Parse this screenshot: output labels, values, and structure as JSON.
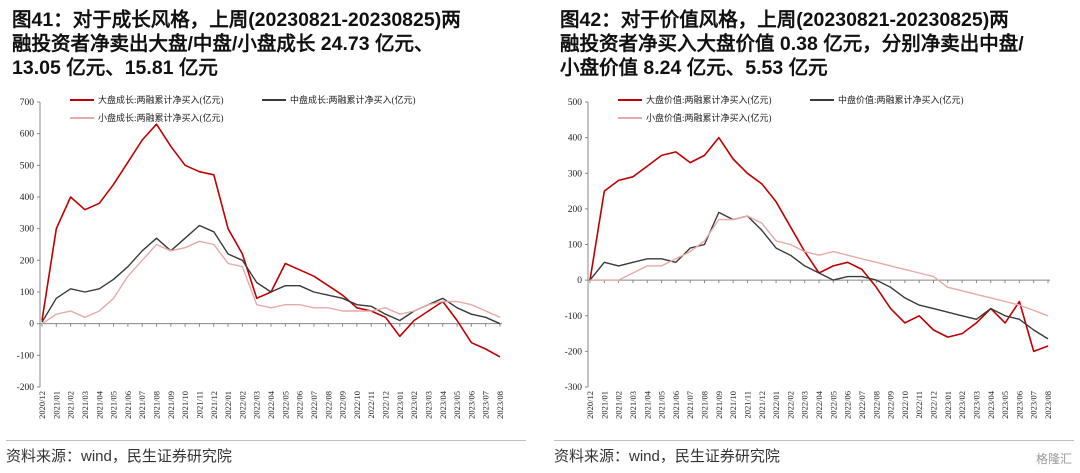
{
  "panels": [
    {
      "title_lines": [
        "图41：对于成长风格，上周(20230821-20230825)两",
        "融投资者净卖出大盘/中盘/小盘成长  24.73  亿元、",
        "13.05 亿元、15.81 亿元"
      ],
      "source": "资料来源：wind，民生证券研究院"
    },
    {
      "title_lines": [
        "图42：对于价值风格，上周(20230821-20230825)两",
        "融投资者净买入大盘价值 0.38 亿元，分别净卖出中盘/",
        "小盘价值 8.24 亿元、5.53 亿元"
      ],
      "source": "资料来源：wind，民生证券研究院"
    }
  ],
  "watermark": "格隆汇",
  "chart_data": [
    {
      "type": "line",
      "title": "",
      "ylim": [
        -200,
        700
      ],
      "yticks": [
        -200,
        -100,
        0,
        100,
        200,
        300,
        400,
        500,
        600,
        700
      ],
      "ytick_labels": [
        "-200",
        "-100",
        "0",
        "100",
        "200",
        "300",
        "400",
        "500",
        "600",
        "700"
      ],
      "grid": false,
      "legend": "top",
      "xticks": [
        "2020/12",
        "2021/01",
        "2021/02",
        "2021/03",
        "2021/04",
        "2021/05",
        "2021/06",
        "2021/07",
        "2021/08",
        "2021/09",
        "2021/10",
        "2021/11",
        "2021/12",
        "2022/01",
        "2022/02",
        "2022/03",
        "2022/04",
        "2022/05",
        "2022/06",
        "2022/07",
        "2022/08",
        "2022/09",
        "2022/10",
        "2022/11",
        "2022/12",
        "2023/01",
        "2023/02",
        "2023/03",
        "2023/04",
        "2023/05",
        "2023/06",
        "2023/07",
        "2023/08"
      ],
      "x": [
        "2020/12",
        "2021/01",
        "2021/02",
        "2021/03",
        "2021/04",
        "2021/05",
        "2021/06",
        "2021/07",
        "2021/08",
        "2021/09",
        "2021/10",
        "2021/11",
        "2021/12",
        "2022/01",
        "2022/02",
        "2022/03",
        "2022/04",
        "2022/05",
        "2022/06",
        "2022/07",
        "2022/08",
        "2022/09",
        "2022/10",
        "2022/11",
        "2022/12",
        "2023/01",
        "2023/02",
        "2023/03",
        "2023/04",
        "2023/05",
        "2023/06",
        "2023/07",
        "2023/08"
      ],
      "series": [
        {
          "name": "大盘成长:两融累计净买入(亿元)",
          "color": "#c00000",
          "width": 1.6,
          "values": [
            10,
            300,
            400,
            360,
            380,
            440,
            510,
            580,
            630,
            560,
            500,
            480,
            470,
            300,
            220,
            80,
            100,
            190,
            170,
            150,
            120,
            90,
            50,
            40,
            20,
            -40,
            10,
            40,
            70,
            10,
            -60,
            -80,
            -105
          ]
        },
        {
          "name": "中盘成长:两融累计净买入(亿元)",
          "color": "#3a3a3a",
          "width": 1.4,
          "values": [
            5,
            80,
            110,
            100,
            110,
            140,
            180,
            230,
            270,
            230,
            270,
            310,
            290,
            220,
            200,
            130,
            100,
            120,
            120,
            100,
            90,
            80,
            60,
            55,
            30,
            10,
            40,
            60,
            80,
            50,
            30,
            20,
            0
          ]
        },
        {
          "name": "小盘成长:两融累计净买入(亿元)",
          "color": "#e8a9a9",
          "width": 1.4,
          "values": [
            0,
            30,
            40,
            20,
            40,
            80,
            150,
            200,
            250,
            230,
            240,
            260,
            250,
            190,
            180,
            60,
            50,
            60,
            60,
            50,
            50,
            40,
            40,
            40,
            50,
            30,
            40,
            60,
            70,
            70,
            60,
            40,
            20
          ]
        }
      ]
    },
    {
      "type": "line",
      "title": "",
      "ylim": [
        -300,
        500
      ],
      "yticks": [
        -300,
        -200,
        -100,
        0,
        100,
        200,
        300,
        400,
        500
      ],
      "ytick_labels": [
        "-300",
        "-200",
        "-100",
        "0",
        "100",
        "200",
        "300",
        "400",
        "500"
      ],
      "grid": false,
      "legend": "top",
      "xticks": [
        "2020/12",
        "2021/01",
        "2021/02",
        "2021/03",
        "2021/04",
        "2021/05",
        "2021/06",
        "2021/07",
        "2021/08",
        "2021/09",
        "2021/10",
        "2021/11",
        "2021/12",
        "2022/01",
        "2022/02",
        "2022/03",
        "2022/04",
        "2022/05",
        "2022/06",
        "2022/07",
        "2022/08",
        "2022/09",
        "2022/10",
        "2022/11",
        "2022/12",
        "2023/01",
        "2023/02",
        "2023/03",
        "2023/04",
        "2023/05",
        "2023/06",
        "2023/07",
        "2023/08"
      ],
      "x": [
        "2020/12",
        "2021/01",
        "2021/02",
        "2021/03",
        "2021/04",
        "2021/05",
        "2021/06",
        "2021/07",
        "2021/08",
        "2021/09",
        "2021/10",
        "2021/11",
        "2021/12",
        "2022/01",
        "2022/02",
        "2022/03",
        "2022/04",
        "2022/05",
        "2022/06",
        "2022/07",
        "2022/08",
        "2022/09",
        "2022/10",
        "2022/11",
        "2022/12",
        "2023/01",
        "2023/02",
        "2023/03",
        "2023/04",
        "2023/05",
        "2023/06",
        "2023/07",
        "2023/08"
      ],
      "series": [
        {
          "name": "大盘价值:两融累计净买入(亿元)",
          "color": "#c00000",
          "width": 1.6,
          "values": [
            0,
            250,
            280,
            290,
            320,
            350,
            360,
            330,
            350,
            400,
            340,
            300,
            270,
            220,
            150,
            80,
            20,
            40,
            50,
            30,
            -20,
            -80,
            -120,
            -100,
            -140,
            -160,
            -150,
            -120,
            -80,
            -120,
            -60,
            -200,
            -185
          ]
        },
        {
          "name": "中盘价值:两融累计净买入(亿元)",
          "color": "#3a3a3a",
          "width": 1.4,
          "values": [
            0,
            50,
            40,
            50,
            60,
            60,
            50,
            90,
            100,
            190,
            170,
            180,
            140,
            90,
            70,
            40,
            20,
            0,
            10,
            10,
            0,
            -20,
            -50,
            -70,
            -80,
            -90,
            -100,
            -110,
            -80,
            -100,
            -110,
            -140,
            -165
          ]
        },
        {
          "name": "小盘价值:两融累计净买入(亿元)",
          "color": "#e8a9a9",
          "width": 1.4,
          "values": [
            0,
            0,
            0,
            20,
            40,
            40,
            60,
            80,
            110,
            170,
            170,
            180,
            160,
            110,
            100,
            80,
            70,
            80,
            70,
            60,
            50,
            40,
            30,
            20,
            10,
            -20,
            -30,
            -40,
            -50,
            -60,
            -70,
            -85,
            -100
          ]
        }
      ]
    }
  ]
}
